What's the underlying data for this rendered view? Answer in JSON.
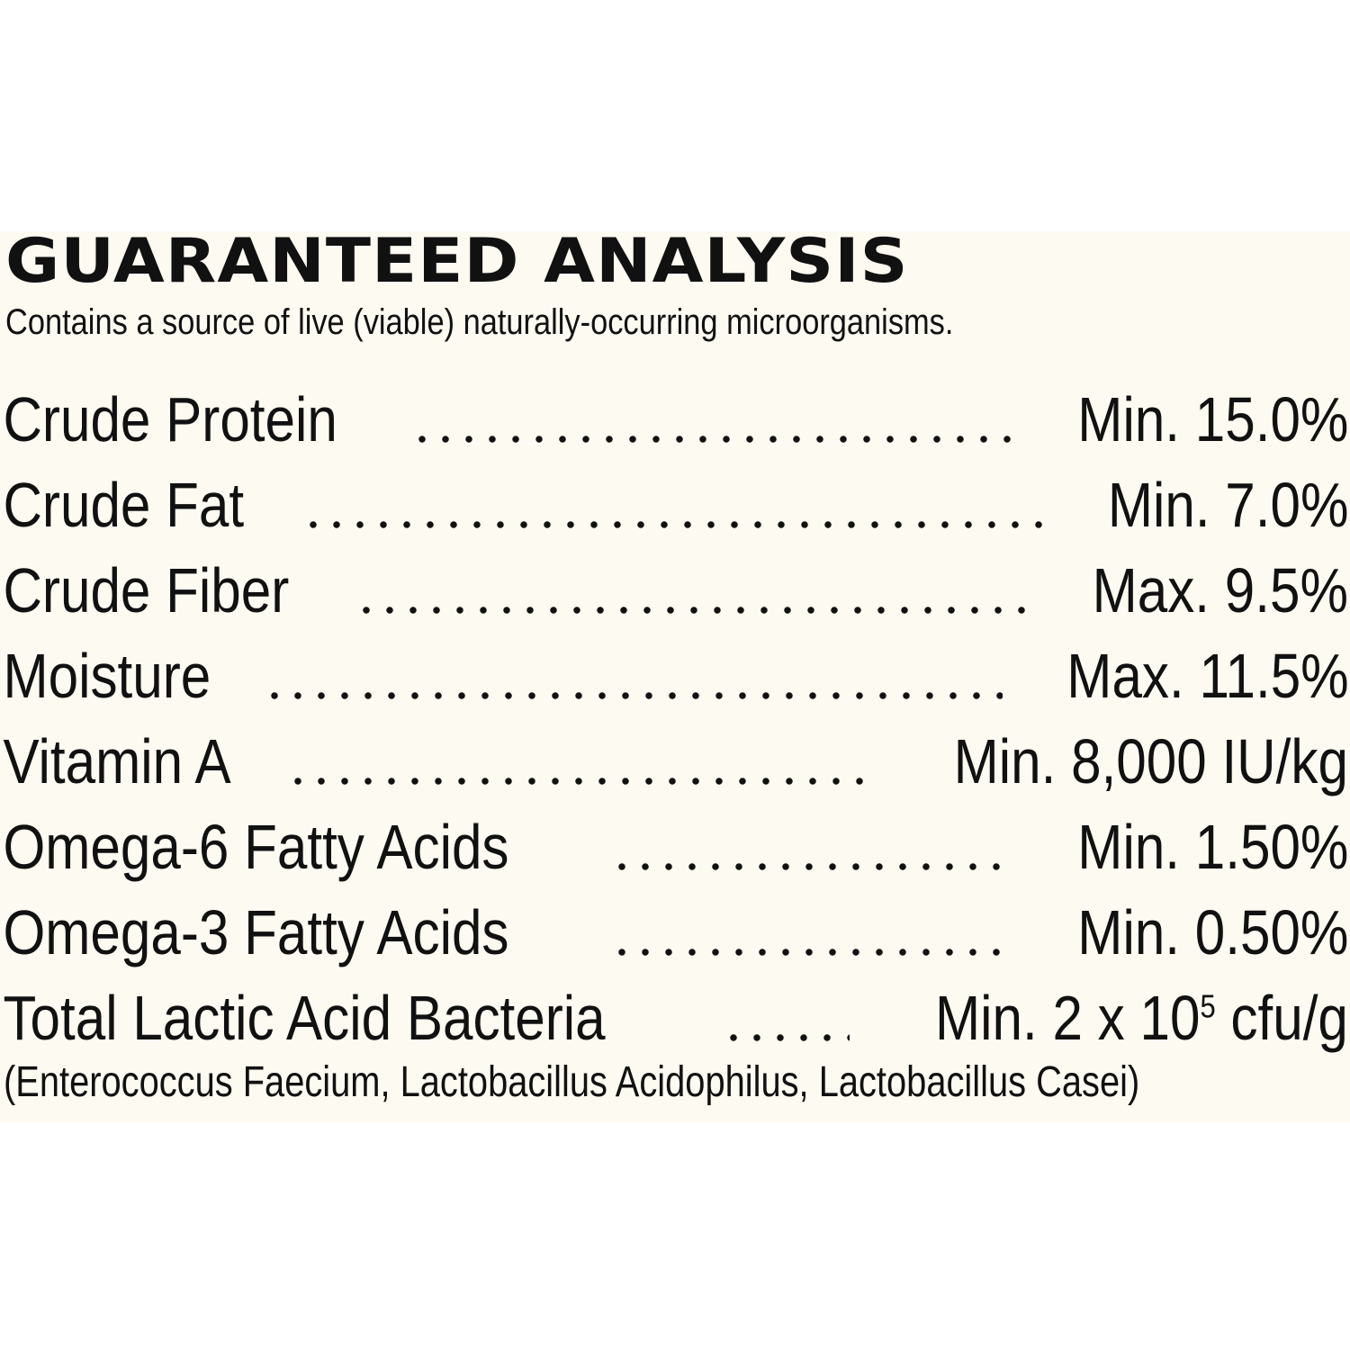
{
  "label": {
    "title": "GUARANTEED ANALYSIS",
    "subtitle": "Contains a source of live (viable) naturally-occurring microorganisms.",
    "rows": [
      {
        "name": "Crude Protein",
        "value": "Min. 15.0%"
      },
      {
        "name": "Crude Fat",
        "value": "Min. 7.0%"
      },
      {
        "name": "Crude Fiber",
        "value": "Max. 9.5%"
      },
      {
        "name": "Moisture",
        "value": "Max. 11.5%"
      },
      {
        "name": "Vitamin A",
        "value": "Min. 8,000 IU/kg"
      },
      {
        "name": "Omega-6 Fatty Acids",
        "value": "Min. 1.50%"
      },
      {
        "name": "Omega-3 Fatty Acids",
        "value": "Min. 0.50%"
      },
      {
        "name": "Total Lactic Acid Bacteria",
        "value_prefix": "Min. 2 x 10",
        "value_exponent": "5",
        "value_suffix": " cfu/g"
      }
    ],
    "footnote": "(Enterococcus Faecium, Lactobacillus Acidophilus, Lactobacillus Casei)"
  },
  "colors": {
    "panel_background": "#fcfaf1",
    "page_background": "#ffffff",
    "text": "#111111"
  }
}
